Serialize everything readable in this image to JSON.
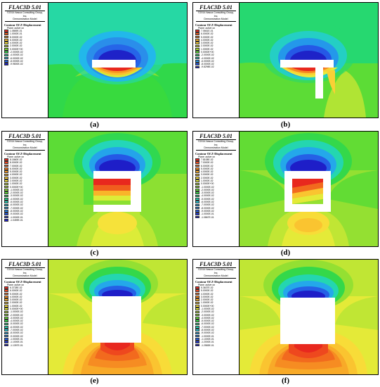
{
  "panels": [
    {
      "caption": "(a)",
      "app_title": "FLAC3D 5.01",
      "copyright": "©2014 Itasca Consulting Group, Inc.",
      "model": "Demonstration Model",
      "contour_title": "Contour Of Z-Displacement",
      "plane": "Plane: active on",
      "levels": [
        "1.0869E-01",
        "1.0000E-01",
        "8.0000E-02",
        "6.0000E-02",
        "4.0000E-02",
        "2.0000E-02",
        "0.0000E+00",
        "-2.0000E-02",
        "-4.0000E-02",
        "-6.0000E-02",
        "-8.0000E-02",
        "-9.9800E-02"
      ],
      "colors": [
        "#e8281e",
        "#f05a1e",
        "#f59b22",
        "#fac030",
        "#f8e23a",
        "#d4ec35",
        "#86e032",
        "#30d84a",
        "#26d8a4",
        "#22b8ea",
        "#2665e8",
        "#1e22c8"
      ]
    },
    {
      "caption": "(b)",
      "app_title": "FLAC3D 5.01",
      "copyright": "©2014 Itasca Consulting Group, Inc.",
      "model": "Demonstration Model",
      "contour_title": "Contour Of Z-Displacement",
      "plane": "Plane: active on",
      "levels": [
        "7.0661E-01",
        "6.0000E-02",
        "5.0000E-02",
        "4.0000E-02",
        "3.0000E-02",
        "2.0000E-02",
        "1.0000E-02",
        "0.0000E+00",
        "-2.0000E-02",
        "-4.0000E-02",
        "-6.0000E-02",
        "-8.0000E-02",
        "-9.8298E-02"
      ],
      "colors": [
        "#e8281e",
        "#f05a1e",
        "#f58a22",
        "#f8b02a",
        "#fad035",
        "#e8ec38",
        "#b0e434",
        "#5cdc36",
        "#26d870",
        "#24cfc4",
        "#2498ea",
        "#2558e6",
        "#1e22c8"
      ]
    },
    {
      "caption": "(c)",
      "app_title": "FLAC3D 5.01",
      "copyright": "©2014 Itasca Consulting Group, Inc.",
      "model": "Demonstration Model",
      "contour_title": "Contour Of Z-Displacement",
      "plane": "Plane: active on",
      "levels": [
        "8.1860E-02",
        "8.0000E-02",
        "7.0000E-02",
        "6.0000E-02",
        "5.0000E-02",
        "4.0000E-02",
        "3.0000E-02",
        "2.0000E-02",
        "1.0000E-02",
        "0.0000E+00",
        "-1.0000E-02",
        "-2.0000E-02",
        "-3.0000E-02",
        "-4.0000E-02",
        "-5.0000E-02",
        "-6.0000E-02",
        "-7.0000E-02",
        "-8.0000E-02",
        "-9.0000E-02",
        "-1.0000E-01",
        "-1.0459E-01"
      ],
      "colors": [
        "#e8281e",
        "#ec421e",
        "#f05e1e",
        "#f47c20",
        "#f79a24",
        "#f9b42a",
        "#facc32",
        "#f6e23a",
        "#dcec38",
        "#b8e634",
        "#8ce032",
        "#5cdc36",
        "#30d850",
        "#26d888",
        "#24d6b8",
        "#24c4dc",
        "#24a4ea",
        "#2480ea",
        "#2558e6",
        "#2234d8",
        "#1e1ec8"
      ]
    },
    {
      "caption": "(d)",
      "app_title": "FLAC3D 5.01",
      "copyright": "©2014 Itasca Consulting Group, Inc.",
      "model": "Demonstration Model",
      "contour_title": "Contour Of Z-Displacement",
      "plane": "Plane: active on",
      "levels": [
        "7.8108E-02",
        "7.0000E-02",
        "6.0000E-02",
        "5.0000E-02",
        "4.0000E-02",
        "3.0000E-02",
        "2.0000E-02",
        "1.0000E-02",
        "0.0000E+00",
        "-1.0000E-02",
        "-2.0000E-02",
        "-3.0000E-02",
        "-4.0000E-02",
        "-5.0000E-02",
        "-6.0000E-02",
        "-7.0000E-02",
        "-8.0000E-02",
        "-9.0000E-02",
        "-1.0000E-01",
        "-1.0867E-01"
      ],
      "colors": [
        "#e8281e",
        "#ee481e",
        "#f26a1e",
        "#f68c22",
        "#f8aa28",
        "#fac430",
        "#f8dc38",
        "#e4ea38",
        "#c0e634",
        "#94e032",
        "#62dc34",
        "#34d84a",
        "#26d880",
        "#24d6b0",
        "#24c8d8",
        "#24a8ea",
        "#2484ea",
        "#2560e6",
        "#223ad8",
        "#1e1ec8"
      ]
    },
    {
      "caption": "(e)",
      "app_title": "FLAC3D 5.01",
      "copyright": "©2014 Itasca Consulting Group, Inc.",
      "model": "Demonstration Model",
      "contour_title": "Contour Of Z-Displacement",
      "plane": "Plane: active on",
      "levels": [
        "6.3728E-02",
        "6.0000E-02",
        "5.0000E-02",
        "4.0000E-02",
        "3.0000E-02",
        "2.0000E-02",
        "1.0000E-02",
        "0.0000E+00",
        "-1.0000E-02",
        "-2.0000E-02",
        "-3.0000E-02",
        "-4.0000E-02",
        "-5.0000E-02",
        "-6.0000E-02",
        "-7.0000E-02",
        "-8.0000E-02",
        "-9.0000E-02",
        "-1.0000E-01",
        "-1.1000E-01",
        "-1.1397E-01"
      ],
      "colors": [
        "#e8281e",
        "#ee481e",
        "#f26a1e",
        "#f68c22",
        "#f8aa28",
        "#fac430",
        "#f8dc38",
        "#e4ea38",
        "#c0e634",
        "#94e032",
        "#62dc34",
        "#34d84a",
        "#26d880",
        "#24d6b0",
        "#24c8d8",
        "#24a8ea",
        "#2484ea",
        "#2560e6",
        "#223ad8",
        "#1e1ec8"
      ]
    },
    {
      "caption": "(f)",
      "app_title": "FLAC3D 5.01",
      "copyright": "©2014 Itasca Consulting Group, Inc.",
      "model": "Demonstration Model",
      "contour_title": "Contour Of Z-Displacement",
      "plane": "Plane: active on",
      "levels": [
        "5.3637E-02",
        "5.0000E-02",
        "4.0000E-02",
        "3.0000E-02",
        "2.0000E-02",
        "1.0000E-02",
        "0.0000E+00",
        "-1.0000E-02",
        "-2.0000E-02",
        "-3.0000E-02",
        "-4.0000E-02",
        "-5.0000E-02",
        "-6.0000E-02",
        "-7.0000E-02",
        "-8.0000E-02",
        "-9.0000E-02",
        "-1.0000E-01",
        "-1.1000E-01",
        "-1.2000E-01",
        "-1.2583E-01"
      ],
      "colors": [
        "#e8281e",
        "#ee481e",
        "#f26a1e",
        "#f68c22",
        "#f8aa28",
        "#fac430",
        "#f8dc38",
        "#e4ea38",
        "#c0e634",
        "#94e032",
        "#62dc34",
        "#34d84a",
        "#26d880",
        "#24d6b0",
        "#24c8d8",
        "#24a8ea",
        "#2484ea",
        "#2560e6",
        "#223ad8",
        "#1e1ec8"
      ]
    }
  ]
}
